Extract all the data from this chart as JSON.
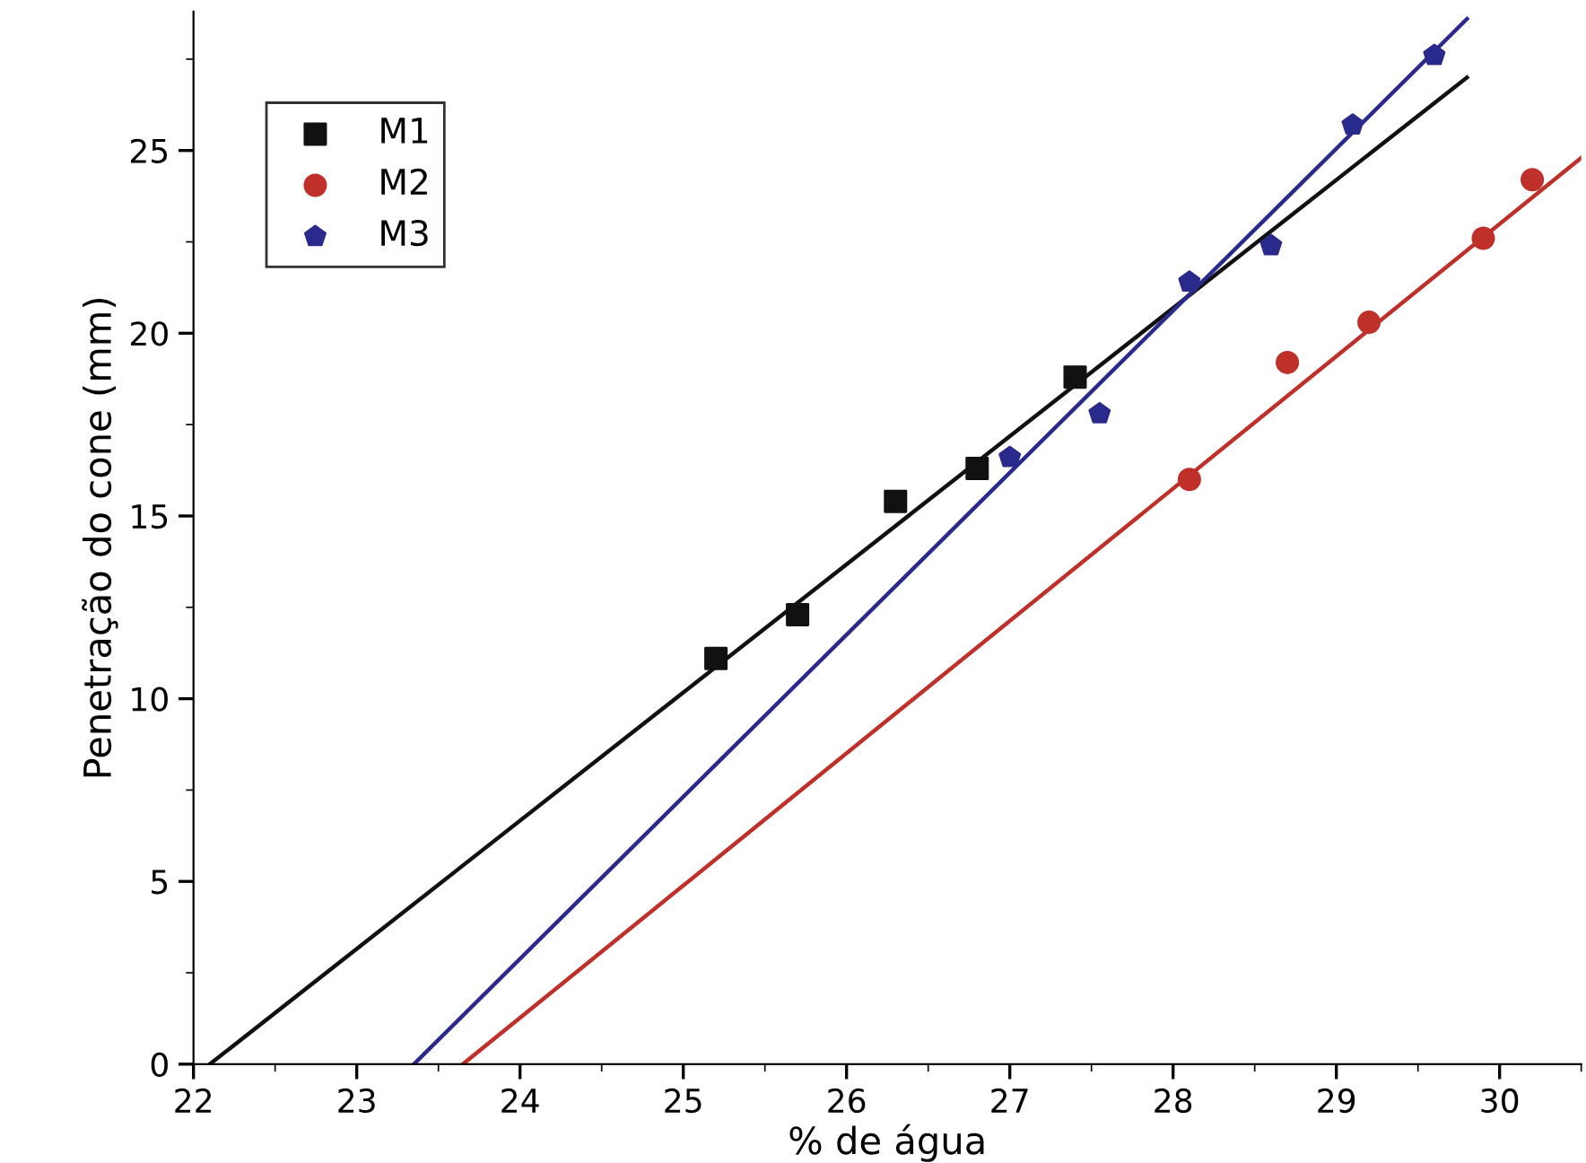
{
  "chart_data": {
    "type": "scatter",
    "xlabel": "% de água",
    "ylabel": "Penetração do cone (mm)",
    "xlim": [
      22,
      30.5
    ],
    "ylim": [
      0,
      28.8
    ],
    "xticks": [
      22,
      23,
      24,
      25,
      26,
      27,
      28,
      29,
      30
    ],
    "yticks": [
      0,
      5,
      10,
      15,
      20,
      25
    ],
    "grid": false,
    "legend": "top left",
    "series": [
      {
        "name": "M1",
        "color": "#111111",
        "marker": "square",
        "x": [
          25.2,
          25.7,
          26.3,
          26.8,
          27.4
        ],
        "values": [
          11.1,
          12.3,
          15.4,
          16.3,
          18.8
        ]
      },
      {
        "name": "M2",
        "color": "#c0302a",
        "marker": "circle",
        "x": [
          28.1,
          28.7,
          29.2,
          29.9,
          30.2
        ],
        "values": [
          16.0,
          19.2,
          20.3,
          22.6,
          24.2
        ]
      },
      {
        "name": "M3",
        "color": "#2a2a8c",
        "x": [
          27.0,
          27.55,
          28.1,
          28.6,
          29.1,
          29.6
        ],
        "values": [
          16.6,
          17.8,
          21.4,
          22.4,
          25.7,
          27.6
        ]
      },
      {
        "type": "line",
        "color": "#111111",
        "marker": "none",
        "x": [
          22.1,
          29.8
        ],
        "values": [
          0,
          27.0
        ]
      },
      {
        "type": "line",
        "color": "#c0302a",
        "marker": "none",
        "x": [
          23.65,
          30.5
        ],
        "values": [
          0,
          24.8
        ]
      },
      {
        "type": "line",
        "color": "#2a2a8c",
        "marker": "none",
        "x": [
          23.35,
          29.8
        ],
        "values": [
          0,
          28.6
        ]
      }
    ]
  }
}
